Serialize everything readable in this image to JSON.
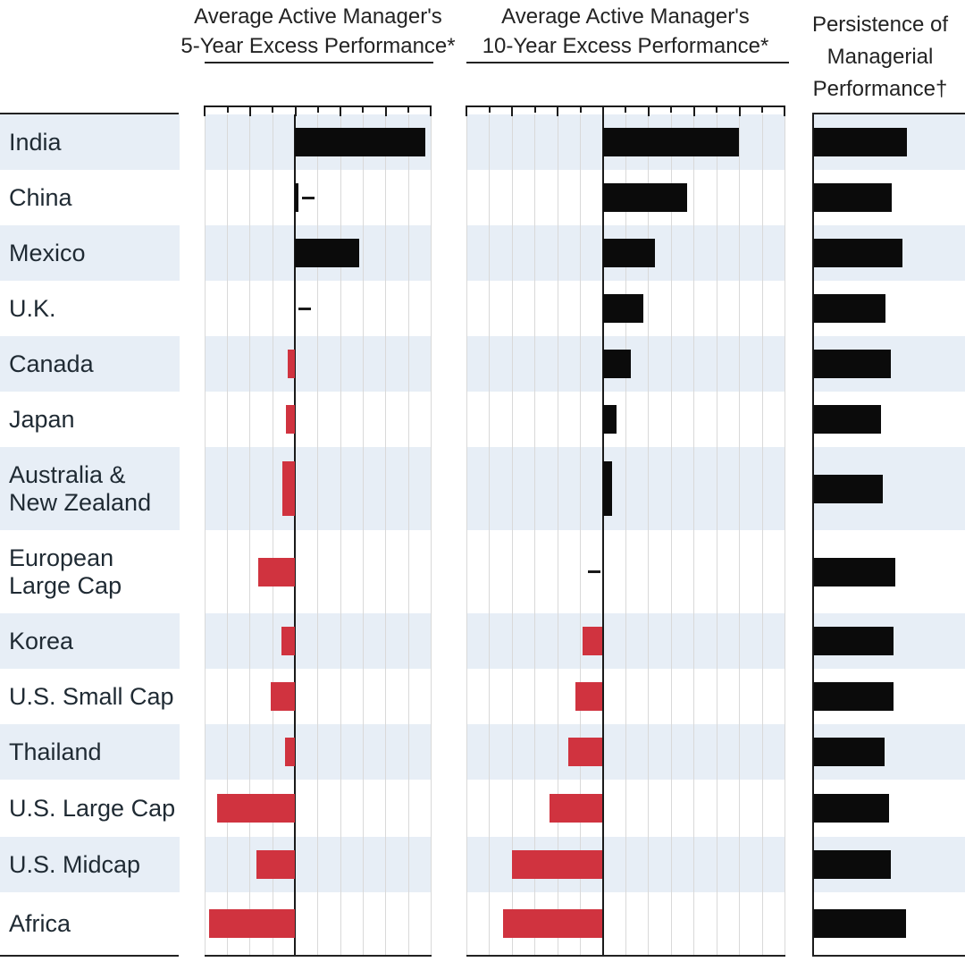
{
  "page": {
    "background": "#ffffff"
  },
  "headers": {
    "panel1": {
      "line1": "Average Active Manager's",
      "line2": "5-Year Excess Performance*"
    },
    "panel2": {
      "line1": "Average Active Manager's",
      "line2": "10-Year Excess Performance*"
    },
    "panel3": {
      "line1": "Persistence of",
      "line2": "Managerial",
      "line3": "Performance†"
    }
  },
  "colors": {
    "positive_bar": "#0b0b0b",
    "negative_bar": "#d0333f",
    "row_stripe": "#e7eef6",
    "gridline": "#d9d9d9",
    "axis": "#1a1a1a",
    "text": "#232323"
  },
  "chart_data": {
    "type": "bar",
    "orientation": "horizontal",
    "categories": [
      "India",
      "China",
      "Mexico",
      "U.K.",
      "Canada",
      "Japan",
      "Australia &\nNew Zealand",
      "European\nLarge Cap",
      "Korea",
      "U.S. Small Cap",
      "Thailand",
      "U.S. Large Cap",
      "U.S. Midcap",
      "Africa"
    ],
    "row_shading": {
      "color": "#e7eef6",
      "pattern": "alternating rows, first row (India) shaded"
    },
    "panels": [
      {
        "title": "Average Active Manager's 5-Year Excess Performance*",
        "axis": {
          "min": -4,
          "max": 6,
          "tick_interval": 1,
          "tick_labels": false,
          "zero_line": true,
          "gridlines": true,
          "units": "unlabeled gridline intervals"
        },
        "values": [
          5.75,
          0.15,
          2.85,
          0,
          -0.3,
          -0.4,
          -0.55,
          -1.6,
          -0.6,
          -1.05,
          -0.45,
          -3.45,
          -1.7,
          -3.8
        ],
        "near_zero_dash_indices": [
          1,
          3
        ],
        "positive_color": "#0b0b0b",
        "negative_color": "#d0333f"
      },
      {
        "title": "Average Active Manager's 10-Year Excess Performance*",
        "axis": {
          "min": -6,
          "max": 8,
          "tick_interval": 1,
          "tick_labels": false,
          "zero_line": true,
          "gridlines": true,
          "units": "unlabeled gridline intervals"
        },
        "values": [
          6.0,
          3.7,
          2.3,
          1.8,
          1.25,
          0.6,
          0.4,
          -0.05,
          -0.9,
          -1.2,
          -1.5,
          -2.35,
          -4.0,
          -4.4
        ],
        "near_zero_dash_indices": [
          7
        ],
        "positive_color": "#0b0b0b",
        "negative_color": "#d0333f"
      },
      {
        "title": "Persistence of Managerial Performance†",
        "axis": {
          "min": 0,
          "max": 100,
          "tick_labels": false,
          "gridlines": false
        },
        "values": [
          61,
          51,
          58,
          47,
          50,
          44,
          45,
          53,
          52,
          52,
          46,
          49,
          50,
          60
        ],
        "bar_color": "#0b0b0b",
        "note": "bar lengths estimated as percent of panel width; no scale shown in image"
      }
    ]
  }
}
